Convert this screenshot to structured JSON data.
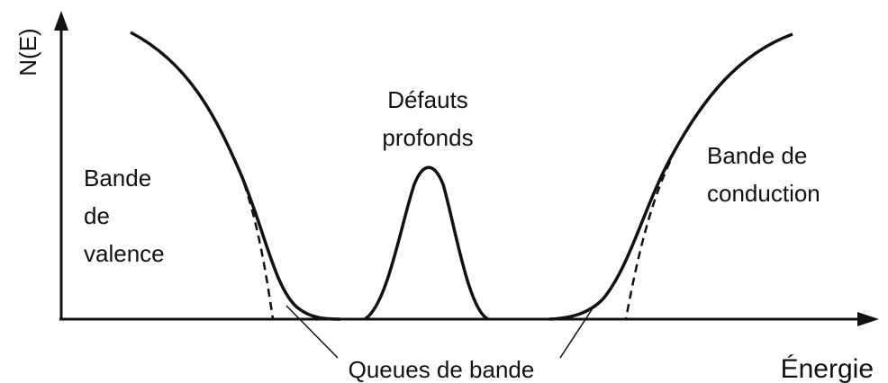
{
  "diagram": {
    "y_axis_label": "N(E)",
    "x_axis_label": "Énergie",
    "labels": [
      {
        "lines": [
          "Bande",
          "de",
          "valence"
        ]
      },
      {
        "lines": [
          "Défauts",
          "profonds"
        ]
      },
      {
        "lines": [
          "Bande de",
          "conduction"
        ]
      },
      {
        "lines": [
          "Queues de bande"
        ]
      }
    ]
  }
}
